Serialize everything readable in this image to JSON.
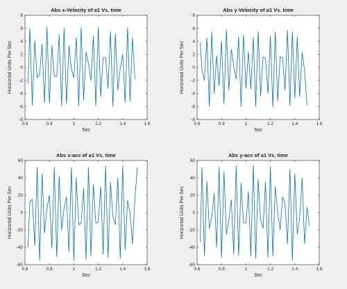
{
  "colors": {
    "background": "#f0f0f0",
    "axes": "#ffffff",
    "line": "#0072bd",
    "frame": "#262626"
  },
  "chart_data": [
    {
      "type": "line",
      "title": "Abs x-Velocity of a1 Vs. time",
      "xlabel": "Sec",
      "ylabel": "Horizontal Units Per Sec",
      "xlim": [
        0.6,
        1.6
      ],
      "ylim": [
        -8,
        8
      ],
      "xticks": [
        0.6,
        0.8,
        1,
        1.2,
        1.4,
        1.6
      ],
      "xtick_labels": [
        "0.6",
        "0.8",
        "1",
        "1.2",
        "1.4",
        "1.6"
      ],
      "yticks": [
        -8,
        -6,
        -4,
        -2,
        0,
        2,
        4,
        6,
        8
      ],
      "ytick_labels": [
        "-8",
        "-6",
        "-4",
        "-2",
        "0",
        "2",
        "4",
        "6",
        "8"
      ],
      "grid": false,
      "series": [
        {
          "x": [
            0.625,
            0.64,
            0.66,
            0.68,
            0.7,
            0.72,
            0.74,
            0.76,
            0.78,
            0.8,
            0.82,
            0.84,
            0.86,
            0.88,
            0.9,
            0.92,
            0.94,
            0.96,
            0.98,
            1.0,
            1.02,
            1.04,
            1.06,
            1.08,
            1.1,
            1.12,
            1.14,
            1.16,
            1.18,
            1.2,
            1.22,
            1.24,
            1.26,
            1.28,
            1.3,
            1.32,
            1.34,
            1.36,
            1.38,
            1.4,
            1.42,
            1.44,
            1.46,
            1.48,
            1.5
          ],
          "values": [
            -2.5,
            6.0,
            -5.8,
            4.1,
            -1.6,
            -1.0,
            3.6,
            -5.4,
            6.2,
            -5.5,
            3.3,
            -1.3,
            -1.4,
            5.0,
            -5.9,
            6.0,
            -5.6,
            3.3,
            -0.3,
            -1.6,
            4.6,
            -5.9,
            6.1,
            -5.0,
            2.3,
            0.6,
            -2.0,
            4.8,
            -5.9,
            6.1,
            -4.5,
            1.5,
            1.5,
            -3.2,
            5.5,
            -6.0,
            5.2,
            -3.5,
            -0.2,
            2.0,
            -5.4,
            6.1,
            -5.2,
            4.6,
            -1.8
          ]
        }
      ]
    },
    {
      "type": "line",
      "title": "Abs y-Velocity of a1 Vs. time",
      "xlabel": "Sec",
      "ylabel": "Horizontal Units Per Sec",
      "xlim": [
        0.6,
        1.6
      ],
      "ylim": [
        -8,
        8
      ],
      "xticks": [
        0.6,
        0.8,
        1,
        1.2,
        1.4,
        1.6
      ],
      "xtick_labels": [
        "0.6",
        "0.8",
        "1",
        "1.2",
        "1.4",
        "1.6"
      ],
      "yticks": [
        -8,
        -6,
        -4,
        -2,
        0,
        2,
        4,
        6,
        8
      ],
      "ytick_labels": [
        "-8",
        "-6",
        "-4",
        "-2",
        "0",
        "2",
        "4",
        "6",
        "8"
      ],
      "grid": false,
      "series": [
        {
          "x": [
            0.625,
            0.64,
            0.66,
            0.68,
            0.7,
            0.72,
            0.74,
            0.76,
            0.78,
            0.8,
            0.82,
            0.84,
            0.86,
            0.88,
            0.9,
            0.92,
            0.94,
            0.96,
            0.98,
            1.0,
            1.02,
            1.04,
            1.06,
            1.08,
            1.1,
            1.12,
            1.14,
            1.16,
            1.18,
            1.2,
            1.22,
            1.24,
            1.26,
            1.28,
            1.3,
            1.32,
            1.34,
            1.36,
            1.38,
            1.4,
            1.42,
            1.44,
            1.46,
            1.48,
            1.5
          ],
          "values": [
            3.8,
            -0.5,
            -2.0,
            4.5,
            -6.0,
            5.5,
            -4.0,
            1.8,
            -2.8,
            4.0,
            -5.6,
            5.8,
            -3.5,
            2.8,
            0.2,
            -1.8,
            4.7,
            -6.0,
            5.0,
            -3.2,
            2.4,
            -3.3,
            4.6,
            -6.0,
            5.5,
            -4.4,
            1.6,
            1.4,
            -4.0,
            4.8,
            -6.1,
            5.4,
            -5.1,
            1.6,
            1.5,
            -3.5,
            5.7,
            -5.9,
            5.5,
            -4.7,
            4.7,
            -4.5,
            2.3,
            -0.5,
            -5.9
          ]
        }
      ]
    },
    {
      "type": "line",
      "title": "Abs x-acc of a1 Vs. time",
      "xlabel": "Sec",
      "ylabel": "Horizontal Units Per Sec",
      "xlim": [
        0.6,
        1.6
      ],
      "ylim": [
        -60,
        60
      ],
      "xticks": [
        0.6,
        0.8,
        1,
        1.2,
        1.4,
        1.6
      ],
      "xtick_labels": [
        "0.6",
        "0.8",
        "1",
        "1.2",
        "1.4",
        "1.6"
      ],
      "yticks": [
        -60,
        -40,
        -20,
        0,
        20,
        40,
        60
      ],
      "ytick_labels": [
        "-60",
        "-40",
        "-20",
        "0",
        "20",
        "40",
        "60"
      ],
      "grid": false,
      "series": [
        {
          "x": [
            0.625,
            0.64,
            0.66,
            0.68,
            0.7,
            0.72,
            0.74,
            0.76,
            0.78,
            0.8,
            0.82,
            0.84,
            0.86,
            0.88,
            0.9,
            0.92,
            0.94,
            0.96,
            0.98,
            1.0,
            1.02,
            1.04,
            1.06,
            1.08,
            1.1,
            1.12,
            1.14,
            1.16,
            1.18,
            1.2,
            1.22,
            1.24,
            1.26,
            1.28,
            1.3,
            1.32,
            1.34,
            1.36,
            1.38,
            1.4,
            1.42,
            1.44,
            1.46,
            1.48,
            1.5,
            1.52
          ],
          "values": [
            -40,
            13,
            15,
            -38,
            52,
            -55,
            45,
            -24,
            5,
            20,
            -41,
            52,
            -51,
            42,
            -20,
            5,
            18,
            -45,
            52,
            -55,
            40,
            -14,
            -12,
            28,
            -54,
            52,
            -50,
            32,
            -12,
            -11,
            30,
            -48,
            54,
            -52,
            35,
            -5,
            -14,
            40,
            -53,
            54,
            -43,
            14,
            0,
            -36,
            16,
            52
          ]
        }
      ]
    },
    {
      "type": "line",
      "title": "Abs y-acc of a1 Vs. time",
      "xlabel": "Sec",
      "ylabel": "Horizontal Units Per Sec",
      "xlim": [
        0.6,
        1.6
      ],
      "ylim": [
        -60,
        60
      ],
      "xticks": [
        0.6,
        0.8,
        1,
        1.2,
        1.4,
        1.6
      ],
      "xtick_labels": [
        "0.6",
        "0.8",
        "1",
        "1.2",
        "1.4",
        "1.6"
      ],
      "yticks": [
        -60,
        -40,
        -20,
        0,
        20,
        40,
        60
      ],
      "ytick_labels": [
        "-60",
        "-40",
        "-20",
        "0",
        "20",
        "40",
        "60"
      ],
      "grid": false,
      "series": [
        {
          "x": [
            0.625,
            0.64,
            0.66,
            0.68,
            0.7,
            0.72,
            0.74,
            0.76,
            0.78,
            0.8,
            0.82,
            0.84,
            0.86,
            0.88,
            0.9,
            0.92,
            0.94,
            0.96,
            0.98,
            1.0,
            1.02,
            1.04,
            1.06,
            1.08,
            1.1,
            1.12,
            1.14,
            1.16,
            1.18,
            1.2,
            1.22,
            1.24,
            1.26,
            1.28,
            1.3,
            1.32,
            1.34,
            1.36,
            1.38,
            1.4,
            1.42,
            1.44,
            1.46,
            1.48,
            1.5,
            1.52
          ],
          "values": [
            -34,
            52,
            -50,
            36,
            -18,
            -5,
            22,
            -40,
            52,
            -52,
            47,
            -25,
            -8,
            15,
            -48,
            54,
            -50,
            34,
            -12,
            -12,
            24,
            -50,
            55,
            -53,
            38,
            -8,
            -18,
            35,
            -52,
            53,
            -50,
            30,
            0,
            -20,
            18,
            10,
            -36,
            50,
            -55,
            45,
            -25,
            -6,
            40,
            -36,
            6,
            -15
          ]
        }
      ]
    }
  ]
}
